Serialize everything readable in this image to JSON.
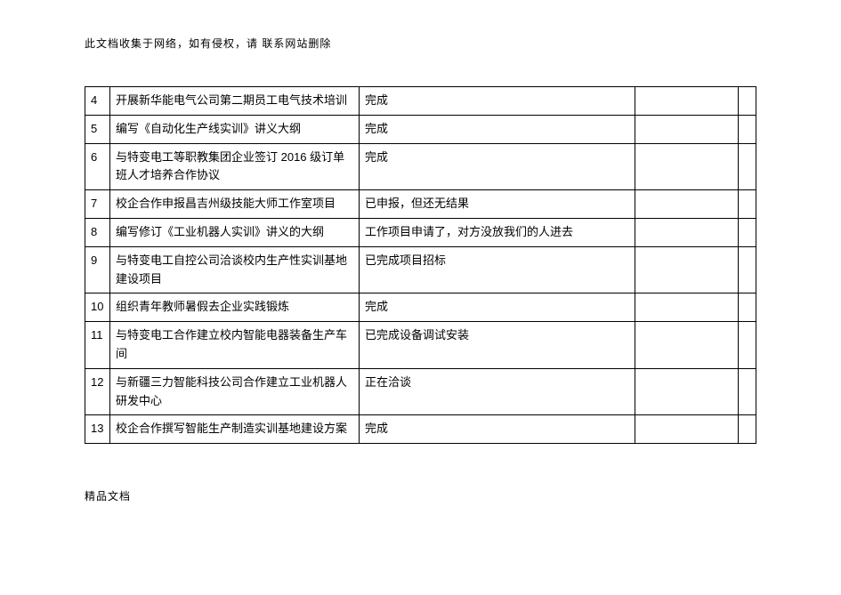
{
  "header_note": "此文档收集于网络，如有侵权，请  联系网站删除",
  "footer_note": "精品文档",
  "table": {
    "rows": [
      {
        "num": "4",
        "task": "开展新华能电气公司第二期员工电气技术培训",
        "status": "完成",
        "c4": "",
        "c5": ""
      },
      {
        "num": "5",
        "task": "编写《自动化生产线实训》讲义大纲",
        "status": "完成",
        "c4": "",
        "c5": ""
      },
      {
        "num": "6",
        "task": "与特变电工等职教集团企业签订 2016 级订单班人才培养合作协议",
        "status": "完成",
        "c4": "",
        "c5": ""
      },
      {
        "num": "7",
        "task": "校企合作申报昌吉州级技能大师工作室项目",
        "status": "已申报，但还无结果",
        "c4": "",
        "c5": ""
      },
      {
        "num": "8",
        "task": "编写修订《工业机器人实训》讲义的大纲",
        "status": "工作项目申请了，对方没放我们的人进去",
        "c4": "",
        "c5": ""
      },
      {
        "num": "9",
        "task": "与特变电工自控公司洽谈校内生产性实训基地建设项目",
        "status": "已完成项目招标",
        "c4": "",
        "c5": ""
      },
      {
        "num": "10",
        "task": "组织青年教师暑假去企业实践锻炼",
        "status": "完成",
        "c4": "",
        "c5": ""
      },
      {
        "num": "11",
        "task": "与特变电工合作建立校内智能电器装备生产车间",
        "status": "已完成设备调试安装",
        "c4": "",
        "c5": ""
      },
      {
        "num": "12",
        "task": "与新疆三力智能科技公司合作建立工业机器人研发中心",
        "status": "正在洽谈",
        "c4": "",
        "c5": ""
      },
      {
        "num": "13",
        "task": "校企合作撰写智能生产制造实训基地建设方案",
        "status": "完成",
        "c4": "",
        "c5": ""
      }
    ]
  }
}
